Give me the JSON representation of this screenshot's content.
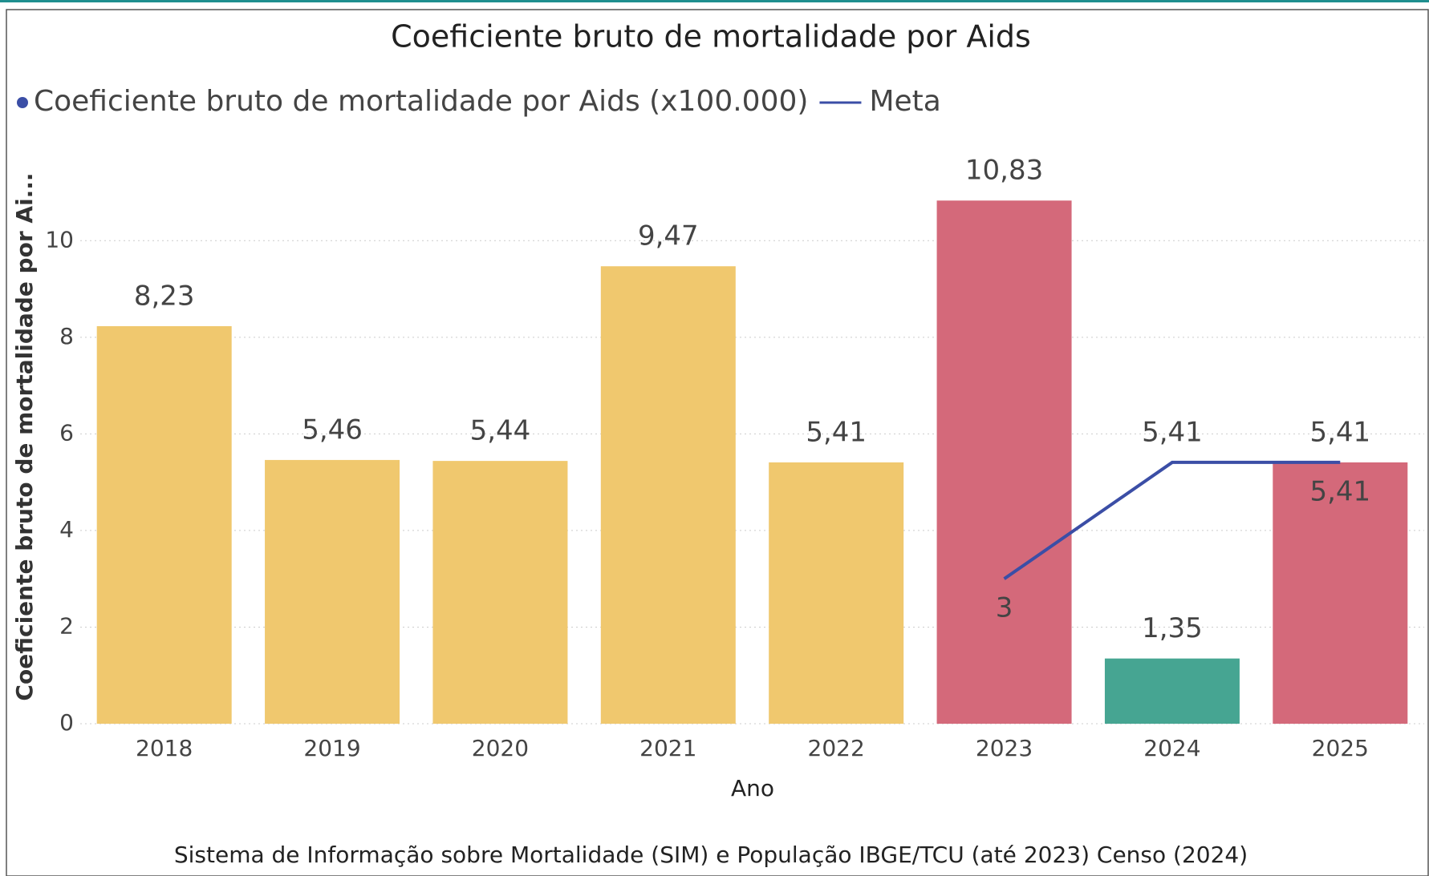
{
  "chart_data": {
    "type": "bar",
    "title": "Coeficiente bruto de mortalidade por Aids",
    "x_label": "Ano",
    "y_label": "Coeficiente bruto de mortalidade por Ai...",
    "source": "Sistema de Informação sobre Mortalidade (SIM) e População IBGE/TCU (até 2023) Censo (2024)",
    "categories": [
      "2018",
      "2019",
      "2020",
      "2021",
      "2022",
      "2023",
      "2024",
      "2025"
    ],
    "series": [
      {
        "name": "Coeficiente bruto de mortalidade por Aids (x100.000)",
        "type": "bar",
        "color": "#3b4ea6",
        "colors": [
          "#f0c86e",
          "#f0c86e",
          "#f0c86e",
          "#f0c86e",
          "#f0c86e",
          "#d4697a",
          "#46a592",
          "#d4697a"
        ],
        "values": [
          8.23,
          5.46,
          5.44,
          9.47,
          5.41,
          10.83,
          1.35,
          5.41
        ],
        "value_labels": [
          "8,23",
          "5,46",
          "5,44",
          "9,47",
          "5,41",
          "10,83",
          "1,35",
          "5,41"
        ]
      },
      {
        "name": "Meta",
        "type": "line",
        "color": "#3b4ea6",
        "values": [
          null,
          null,
          null,
          null,
          null,
          3,
          5.41,
          5.41
        ],
        "value_labels": [
          null,
          null,
          null,
          null,
          null,
          "3",
          "5,41",
          "5,41"
        ]
      }
    ],
    "ylim": [
      0,
      11
    ],
    "yticks": [
      0,
      2,
      4,
      6,
      8,
      10
    ],
    "grid": true
  }
}
